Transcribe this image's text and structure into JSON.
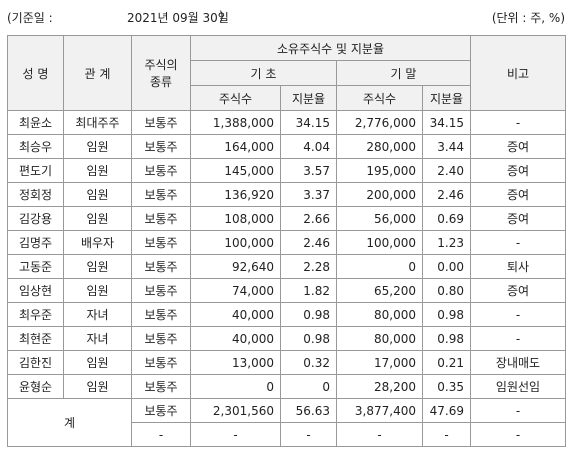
{
  "header": {
    "date_open": "(기준일 :",
    "date": "2021년 09월 30일",
    "date_close": ")",
    "unit": "(단위 : 주, %)"
  },
  "table": {
    "headers": {
      "name": "성 명",
      "relation": "관 계",
      "type": [
        "주식의",
        "종류"
      ],
      "holdings": "소유주식수 및 지분율",
      "remark": "비고",
      "begin": "기 초",
      "end": "기 말",
      "sub": [
        "주식수",
        "지분율",
        "주식수",
        "지분율"
      ]
    },
    "rows": [
      [
        "최윤소",
        "최대주주",
        "보통주",
        "1,388,000",
        "34.15",
        "2,776,000",
        "34.15",
        "-"
      ],
      [
        "최승우",
        "임원",
        "보통주",
        "164,000",
        "4.04",
        "280,000",
        "3.44",
        "증여"
      ],
      [
        "편도기",
        "임원",
        "보통주",
        "145,000",
        "3.57",
        "195,000",
        "2.40",
        "증여"
      ],
      [
        "정회정",
        "임원",
        "보통주",
        "136,920",
        "3.37",
        "200,000",
        "2.46",
        "증여"
      ],
      [
        "김강용",
        "임원",
        "보통주",
        "108,000",
        "2.66",
        "56,000",
        "0.69",
        "증여"
      ],
      [
        "김명주",
        "배우자",
        "보통주",
        "100,000",
        "2.46",
        "100,000",
        "1.23",
        "-"
      ],
      [
        "고동준",
        "임원",
        "보통주",
        "92,640",
        "2.28",
        "0",
        "0.00",
        "퇴사"
      ],
      [
        "임상현",
        "임원",
        "보통주",
        "74,000",
        "1.82",
        "65,200",
        "0.80",
        "증여"
      ],
      [
        "최우준",
        "자녀",
        "보통주",
        "40,000",
        "0.98",
        "80,000",
        "0.98",
        "-"
      ],
      [
        "최현준",
        "자녀",
        "보통주",
        "40,000",
        "0.98",
        "80,000",
        "0.98",
        "-"
      ],
      [
        "김한진",
        "임원",
        "보통주",
        "13,000",
        "0.32",
        "17,000",
        "0.21",
        "장내매도"
      ],
      [
        "윤형순",
        "임원",
        "보통주",
        "0",
        "0",
        "28,200",
        "0.35",
        "임원선임"
      ]
    ],
    "total": {
      "label": "계",
      "rows": [
        [
          "보통주",
          "2,301,560",
          "56.63",
          "3,877,400",
          "47.69",
          "-"
        ],
        [
          "-",
          "-",
          "-",
          "-",
          "-",
          "-"
        ]
      ]
    }
  }
}
